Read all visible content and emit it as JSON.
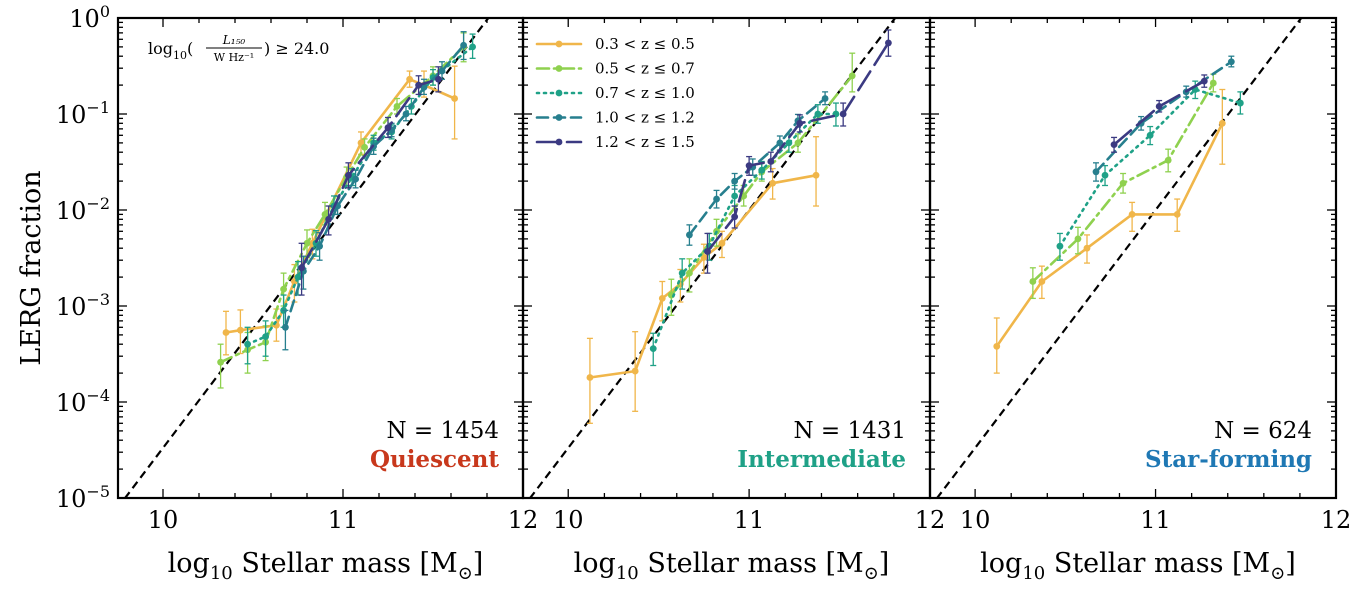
{
  "figure": {
    "ylabel": "LERG fraction",
    "xlabel": "log₁₀ Stellar mass [M⊙]",
    "threshold_label": "log₁₀(L₁₅₀ / W Hz⁻¹) ≥ 24.0"
  },
  "chart_data": [
    {
      "type": "line",
      "panel": "Quiescent",
      "count_label": "N = 1454",
      "category_label": "Quiescent",
      "category_color": "#c8381c",
      "xlim": [
        9.75,
        12.0
      ],
      "ylim": [
        1e-05,
        1.0
      ],
      "yscale": "log",
      "x_ticks": [
        "10",
        "11",
        "12"
      ],
      "y_ticks": [
        "10⁻⁵",
        "10⁻⁴",
        "10⁻³",
        "10⁻²",
        "10⁻¹",
        "10⁰"
      ],
      "reference_line": {
        "style": "dashed",
        "color": "#000000",
        "x": [
          9.7,
          12.0
        ],
        "y": [
          6e-06,
          3.0
        ]
      },
      "series": [
        {
          "name": "0.3 < z ≤ 0.5",
          "color": "#f0b64a",
          "style": "solid",
          "x": [
            10.35,
            10.43,
            10.63,
            10.73,
            10.83,
            11.1,
            11.37,
            11.45,
            11.62
          ],
          "y": [
            0.00053,
            0.00056,
            0.00063,
            0.0018,
            0.0045,
            0.05,
            0.23,
            0.2,
            0.145
          ],
          "yerr_low": [
            0.00022,
            0.00024,
            0.0002,
            0.0007,
            0.0014,
            0.012,
            0.04,
            0.05,
            0.09
          ],
          "yerr_high": [
            0.00035,
            0.00035,
            0.0003,
            0.0009,
            0.0018,
            0.015,
            0.05,
            0.08,
            0.17
          ]
        },
        {
          "name": "0.5 < z ≤ 0.7",
          "color": "#8fd14f",
          "style": "dashdot",
          "x": [
            10.32,
            10.47,
            10.57,
            10.67,
            10.8,
            10.9,
            11.02,
            11.12,
            11.3,
            11.5,
            11.67
          ],
          "y": [
            0.00026,
            0.00035,
            0.00042,
            0.0015,
            0.0045,
            0.009,
            0.022,
            0.045,
            0.12,
            0.25,
            0.5
          ],
          "yerr_low": [
            0.00012,
            0.00015,
            0.00015,
            0.0005,
            0.0013,
            0.002,
            0.004,
            0.008,
            0.02,
            0.05,
            0.15
          ],
          "yerr_high": [
            0.00014,
            0.00018,
            0.0002,
            0.0007,
            0.0017,
            0.003,
            0.006,
            0.01,
            0.025,
            0.06,
            0.2
          ]
        },
        {
          "name": "0.7 < z ≤ 1.0",
          "color": "#1fa187",
          "style": "dotted",
          "x": [
            10.47,
            10.57,
            10.67,
            10.75,
            10.85,
            10.95,
            11.05,
            11.17,
            11.27,
            11.38,
            11.5,
            11.72
          ],
          "y": [
            0.0004,
            0.00048,
            0.0009,
            0.002,
            0.0045,
            0.011,
            0.022,
            0.05,
            0.065,
            0.12,
            0.24,
            0.5
          ],
          "yerr_low": [
            0.00015,
            0.00018,
            0.0003,
            0.0007,
            0.0012,
            0.002,
            0.004,
            0.008,
            0.01,
            0.02,
            0.04,
            0.12
          ],
          "yerr_high": [
            0.0002,
            0.00022,
            0.0004,
            0.0009,
            0.0016,
            0.003,
            0.005,
            0.01,
            0.012,
            0.025,
            0.05,
            0.18
          ]
        },
        {
          "name": "1.0 < z ≤ 1.2",
          "color": "#277f8e",
          "style": "dashed",
          "x": [
            10.68,
            10.78,
            10.87,
            10.97,
            11.07,
            11.17,
            11.27,
            11.35,
            11.45,
            11.55,
            11.67
          ],
          "y": [
            0.0006,
            0.0023,
            0.0042,
            0.011,
            0.021,
            0.046,
            0.068,
            0.1,
            0.19,
            0.28,
            0.52
          ],
          "yerr_low": [
            0.00025,
            0.0008,
            0.0012,
            0.002,
            0.004,
            0.008,
            0.01,
            0.015,
            0.03,
            0.05,
            0.15
          ],
          "yerr_high": [
            0.0003,
            0.001,
            0.0016,
            0.003,
            0.005,
            0.01,
            0.012,
            0.02,
            0.04,
            0.07,
            0.2
          ]
        },
        {
          "name": "1.2 < z ≤ 1.5",
          "color": "#3b3a82",
          "style": "longdash",
          "x": [
            10.77,
            10.92,
            11.03,
            11.25,
            11.42,
            11.53
          ],
          "y": [
            0.0025,
            0.008,
            0.023,
            0.072,
            0.2,
            0.23
          ],
          "yerr_low": [
            0.0012,
            0.0025,
            0.006,
            0.015,
            0.04,
            0.06
          ],
          "yerr_high": [
            0.002,
            0.003,
            0.008,
            0.02,
            0.05,
            0.08
          ]
        }
      ]
    },
    {
      "type": "line",
      "panel": "Intermediate",
      "count_label": "N = 1431",
      "category_label": "Intermediate",
      "category_color": "#1fa187",
      "xlim": [
        9.75,
        12.0
      ],
      "ylim": [
        1e-05,
        1.0
      ],
      "yscale": "log",
      "x_ticks": [
        "10",
        "11",
        "12"
      ],
      "reference_line": {
        "style": "dashed",
        "color": "#000000",
        "x": [
          9.7,
          12.0
        ],
        "y": [
          6e-06,
          3.0
        ]
      },
      "legend": {
        "position": "top-left"
      },
      "series": [
        {
          "name": "0.3 < z ≤ 0.5",
          "color": "#f0b64a",
          "style": "solid",
          "x": [
            10.12,
            10.37,
            10.52,
            10.62,
            10.75,
            10.85,
            11.13,
            11.37
          ],
          "y": [
            0.00018,
            0.00021,
            0.0012,
            0.0017,
            0.0032,
            0.0045,
            0.019,
            0.023
          ],
          "yerr_low": [
            0.00012,
            0.00013,
            0.0005,
            0.0006,
            0.001,
            0.0013,
            0.006,
            0.012
          ],
          "yerr_high": [
            0.00028,
            0.00033,
            0.0006,
            0.0007,
            0.0012,
            0.0015,
            0.008,
            0.035
          ]
        },
        {
          "name": "0.5 < z ≤ 0.7",
          "color": "#8fd14f",
          "style": "dashdot",
          "x": [
            10.57,
            10.67,
            10.82,
            10.97,
            11.07,
            11.27,
            11.57
          ],
          "y": [
            0.0013,
            0.0022,
            0.006,
            0.014,
            0.025,
            0.05,
            0.25
          ],
          "yerr_low": [
            0.0005,
            0.0008,
            0.0018,
            0.003,
            0.005,
            0.01,
            0.08
          ],
          "yerr_high": [
            0.0006,
            0.0009,
            0.002,
            0.004,
            0.006,
            0.012,
            0.18
          ]
        },
        {
          "name": "0.7 < z ≤ 1.0",
          "color": "#1fa187",
          "style": "dotted",
          "x": [
            10.47,
            10.63,
            10.78,
            10.92,
            11.07,
            11.22,
            11.38,
            11.48
          ],
          "y": [
            0.00036,
            0.0022,
            0.0042,
            0.014,
            0.026,
            0.05,
            0.1,
            0.1
          ],
          "yerr_low": [
            0.00012,
            0.0007,
            0.0012,
            0.003,
            0.005,
            0.01,
            0.02,
            0.025
          ],
          "yerr_high": [
            0.00016,
            0.0009,
            0.0015,
            0.004,
            0.006,
            0.012,
            0.025,
            0.03
          ]
        },
        {
          "name": "1.0 < z ≤ 1.2",
          "color": "#277f8e",
          "style": "dashed",
          "x": [
            10.67,
            10.82,
            10.92,
            11.02,
            11.17,
            11.27,
            11.42
          ],
          "y": [
            0.0055,
            0.013,
            0.02,
            0.028,
            0.05,
            0.085,
            0.145
          ],
          "yerr_low": [
            0.0012,
            0.0025,
            0.0035,
            0.005,
            0.008,
            0.012,
            0.02
          ],
          "yerr_high": [
            0.0015,
            0.003,
            0.004,
            0.006,
            0.009,
            0.014,
            0.025
          ]
        },
        {
          "name": "1.2 < z ≤ 1.5",
          "color": "#3b3a82",
          "style": "longdash",
          "x": [
            10.77,
            10.92,
            11.0,
            11.12,
            11.28,
            11.52,
            11.77
          ],
          "y": [
            0.0037,
            0.0085,
            0.029,
            0.032,
            0.08,
            0.1,
            0.55
          ],
          "yerr_low": [
            0.0015,
            0.002,
            0.006,
            0.007,
            0.015,
            0.025,
            0.15
          ],
          "yerr_high": [
            0.002,
            0.0025,
            0.007,
            0.008,
            0.018,
            0.03,
            0.2
          ]
        }
      ]
    },
    {
      "type": "line",
      "panel": "Star-forming",
      "count_label": "N = 624",
      "category_label": "Star-forming",
      "category_color": "#1f78b4",
      "xlim": [
        9.75,
        12.0
      ],
      "ylim": [
        1e-05,
        1.0
      ],
      "yscale": "log",
      "x_ticks": [
        "10",
        "11",
        "12"
      ],
      "reference_line": {
        "style": "dashed",
        "color": "#000000",
        "x": [
          9.7,
          12.0
        ],
        "y": [
          6e-06,
          3.0
        ]
      },
      "series": [
        {
          "name": "0.3 < z ≤ 0.5",
          "color": "#f0b64a",
          "style": "solid",
          "x": [
            10.12,
            10.37,
            10.62,
            10.87,
            11.12,
            11.37
          ],
          "y": [
            0.00038,
            0.0018,
            0.004,
            0.009,
            0.009,
            0.08
          ],
          "yerr_low": [
            0.00018,
            0.0006,
            0.0012,
            0.003,
            0.003,
            0.05
          ],
          "yerr_high": [
            0.00037,
            0.0008,
            0.0015,
            0.003,
            0.004,
            0.1
          ]
        },
        {
          "name": "0.5 < z ≤ 0.7",
          "color": "#8fd14f",
          "style": "dashdot",
          "x": [
            10.32,
            10.57,
            10.82,
            11.07,
            11.32
          ],
          "y": [
            0.0018,
            0.005,
            0.019,
            0.033,
            0.21
          ],
          "yerr_low": [
            0.0006,
            0.0015,
            0.004,
            0.008,
            0.04
          ],
          "yerr_high": [
            0.0007,
            0.0016,
            0.005,
            0.01,
            0.05
          ]
        },
        {
          "name": "0.7 < z ≤ 1.0",
          "color": "#1fa187",
          "style": "dotted",
          "x": [
            10.47,
            10.72,
            10.97,
            11.22,
            11.47
          ],
          "y": [
            0.0042,
            0.023,
            0.06,
            0.18,
            0.13
          ],
          "yerr_low": [
            0.0012,
            0.005,
            0.012,
            0.035,
            0.03
          ],
          "yerr_high": [
            0.0015,
            0.006,
            0.014,
            0.04,
            0.04
          ]
        },
        {
          "name": "1.0 < z ≤ 1.2",
          "color": "#277f8e",
          "style": "dashed",
          "x": [
            10.67,
            10.92,
            11.17,
            11.42
          ],
          "y": [
            0.025,
            0.08,
            0.17,
            0.35
          ],
          "yerr_low": [
            0.005,
            0.012,
            0.02,
            0.04
          ],
          "yerr_high": [
            0.006,
            0.014,
            0.025,
            0.05
          ]
        },
        {
          "name": "1.2 < z ≤ 1.5",
          "color": "#3b3a82",
          "style": "longdash",
          "x": [
            10.77,
            11.02,
            11.27
          ],
          "y": [
            0.048,
            0.12,
            0.22
          ],
          "yerr_low": [
            0.008,
            0.015,
            0.03
          ],
          "yerr_high": [
            0.009,
            0.018,
            0.035
          ]
        }
      ]
    }
  ]
}
